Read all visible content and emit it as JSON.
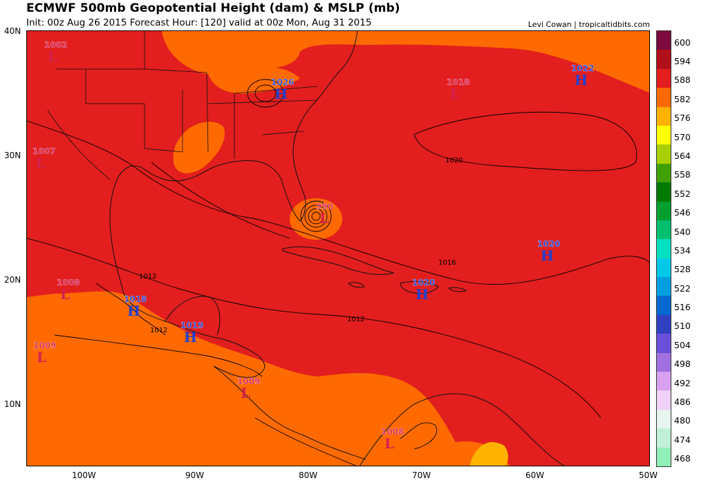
{
  "header": {
    "title": "ECMWF 500mb Geopotential Height (dam) & MSLP (mb)",
    "subtitle": "Init: 00z Aug 26 2015   Forecast Hour: [120]   valid at 00z Mon, Aug 31 2015",
    "credit": "Levi Cowan | tropicaltidbits.com"
  },
  "axes": {
    "lat_labels": [
      "40N",
      "30N",
      "20N",
      "10N"
    ],
    "lon_labels": [
      "100W",
      "90W",
      "80W",
      "70W",
      "60W",
      "50W"
    ]
  },
  "pressure_centers": [
    {
      "value": "1002",
      "type": "L",
      "color": "#d62050"
    },
    {
      "value": "1026",
      "type": "H",
      "color": "#2040d0"
    },
    {
      "value": "1018",
      "type": "L",
      "color": "#d62050"
    },
    {
      "value": "1022",
      "type": "H",
      "color": "#2040d0"
    },
    {
      "value": "1007",
      "type": "L",
      "color": "#d62050"
    },
    {
      "value": "990",
      "type": "L",
      "color": "#d62050"
    },
    {
      "value": "1020",
      "type": "H",
      "color": "#2040d0"
    },
    {
      "value": "1008",
      "type": "L",
      "color": "#d62050"
    },
    {
      "value": "1018",
      "type": "H",
      "color": "#2040d0"
    },
    {
      "value": "1020",
      "type": "H",
      "color": "#2040d0"
    },
    {
      "value": "1019",
      "type": "H",
      "color": "#2040d0"
    },
    {
      "value": "1009",
      "type": "L",
      "color": "#d62050"
    },
    {
      "value": "1009",
      "type": "L",
      "color": "#d62050"
    },
    {
      "value": "1008",
      "type": "L",
      "color": "#d62050"
    }
  ],
  "isobar_labels": [
    "1020",
    "1016",
    "1012",
    "1012",
    "1012"
  ],
  "colorbar": [
    {
      "label": "600",
      "color": "#7d0a3d"
    },
    {
      "label": "594",
      "color": "#b0101a"
    },
    {
      "label": "588",
      "color": "#e21e1e"
    },
    {
      "label": "582",
      "color": "#ff6a00"
    },
    {
      "label": "576",
      "color": "#ffb300"
    },
    {
      "label": "570",
      "color": "#ffff00"
    },
    {
      "label": "564",
      "color": "#a8d000"
    },
    {
      "label": "558",
      "color": "#40a000"
    },
    {
      "label": "552",
      "color": "#007a00"
    },
    {
      "label": "546",
      "color": "#00a030"
    },
    {
      "label": "540",
      "color": "#00c070"
    },
    {
      "label": "534",
      "color": "#00e0c0"
    },
    {
      "label": "528",
      "color": "#00c8e8"
    },
    {
      "label": "522",
      "color": "#00a0e0"
    },
    {
      "label": "516",
      "color": "#0068d0"
    },
    {
      "label": "510",
      "color": "#3040c0"
    },
    {
      "label": "504",
      "color": "#6a50d8"
    },
    {
      "label": "498",
      "color": "#a070e0"
    },
    {
      "label": "492",
      "color": "#d8a0ee"
    },
    {
      "label": "486",
      "color": "#f0d0f6"
    },
    {
      "label": "480",
      "color": "#e6f6ee"
    },
    {
      "label": "474",
      "color": "#c0f0d8"
    },
    {
      "label": "468",
      "color": "#90f0b8"
    }
  ],
  "fill_colors": {
    "high_588": "#e21e1e",
    "mid_582": "#ff6a00",
    "low_576": "#ffb300"
  }
}
